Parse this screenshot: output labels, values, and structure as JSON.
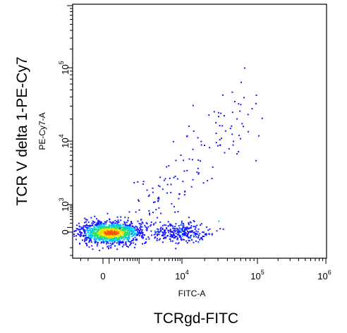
{
  "chart_data": {
    "type": "scatter",
    "title": "",
    "x_scale": "biexponential",
    "y_scale": "biexponential",
    "x_inner_label": "FITC-A",
    "y_inner_label": "PE-Cy7-A",
    "x_outer_label": "TCRgd-FITC",
    "y_outer_label": "TCR V delta 1-PE-Cy7",
    "x_ticks": [
      {
        "value": 0,
        "base": "0",
        "exp": ""
      },
      {
        "value": 10000,
        "base": "10",
        "exp": "4"
      },
      {
        "value": 100000,
        "base": "10",
        "exp": "5"
      },
      {
        "value": 1000000,
        "base": "10",
        "exp": "6"
      }
    ],
    "y_ticks": [
      {
        "value": 0,
        "base": "0",
        "exp": ""
      },
      {
        "value": 1000,
        "base": "10",
        "exp": "3"
      },
      {
        "value": 10000,
        "base": "10",
        "exp": "4"
      },
      {
        "value": 100000,
        "base": "10",
        "exp": "5"
      }
    ],
    "density_colors": [
      "#1a1aff",
      "#00c8ff",
      "#20e070",
      "#f0e000",
      "#ff5000"
    ],
    "populations": [
      {
        "x_center": 120,
        "y_center": 0,
        "x_range": [
          -900,
          1800
        ],
        "y_range": [
          -300,
          300
        ],
        "approx_events": 1200,
        "density": "high"
      },
      {
        "x_center": 9000,
        "y_center": 0,
        "x_range": [
          3000,
          30000
        ],
        "y_range": [
          -250,
          250
        ],
        "approx_events": 300,
        "density": "low"
      },
      {
        "x_center": 8000,
        "y_center": 5000,
        "x_range": [
          1000,
          80000
        ],
        "y_range": [
          500,
          30000
        ],
        "approx_events": 140,
        "density": "sparse"
      }
    ]
  }
}
